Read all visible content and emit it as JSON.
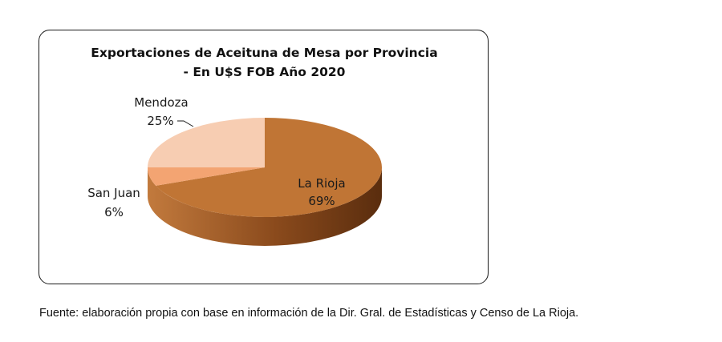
{
  "chart_data": {
    "type": "pie",
    "title": "Exportaciones de Aceituna de Mesa por Provincia",
    "subtitle": " -  En U$S FOB Año 2020",
    "slices": [
      {
        "label": "La Rioja",
        "value": 69,
        "value_label": "69%",
        "color": "#c07535"
      },
      {
        "label": "San Juan",
        "value": 6,
        "value_label": "6%",
        "color": "#f3a472"
      },
      {
        "label": "Mendoza",
        "value": 25,
        "value_label": "25%",
        "color": "#f7cdb2"
      }
    ],
    "style": "3d"
  },
  "source_note": "Fuente: elaboración propia con base en información de la Dir. Gral. de Estadísticas y Censo de La Rioja."
}
